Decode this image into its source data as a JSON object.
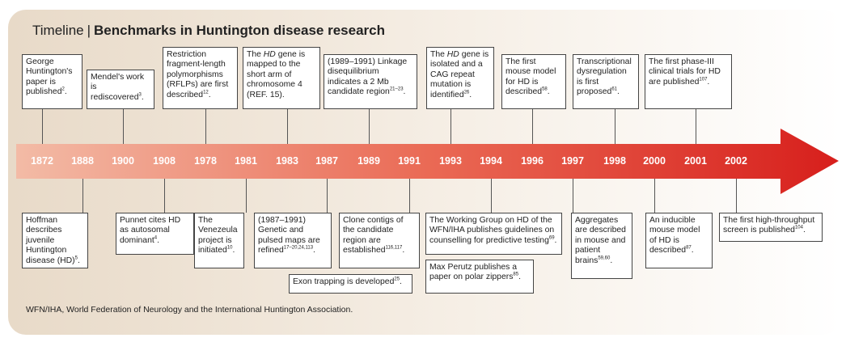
{
  "header": {
    "prefix": "Timeline",
    "separator": "|",
    "title": "Benchmarks in Huntington disease research"
  },
  "years": [
    "1872",
    "1888",
    "1900",
    "1908",
    "1978",
    "1981",
    "1983",
    "1987",
    "1989",
    "1991",
    "1993",
    "1994",
    "1996",
    "1997",
    "1998",
    "2000",
    "2001",
    "2002"
  ],
  "events_above": [
    {
      "year": "1872",
      "pre": "George Huntington's paper is published",
      "italic": "",
      "post": "",
      "sup": "2",
      "post2": "."
    },
    {
      "year": "1900",
      "pre": "Mendel's work is rediscovered",
      "italic": "",
      "post": "",
      "sup": "3",
      "post2": "."
    },
    {
      "year": "1978",
      "pre": "Restriction fragment-length polymorphisms (RFLPs) are first described",
      "italic": "",
      "post": "",
      "sup": "12",
      "post2": "."
    },
    {
      "year": "1983",
      "pre": "The ",
      "italic": "HD",
      "post": " gene is mapped to the short arm of chromosome 4 (REF. 15).",
      "sup": "",
      "post2": ""
    },
    {
      "year": "1989",
      "pre": "(1989–1991) Linkage disequilibrium indicates a 2 Mb candidate region",
      "italic": "",
      "post": "",
      "sup": "21–23",
      "post2": "."
    },
    {
      "year": "1993",
      "pre": "The ",
      "italic": "HD",
      "post": " gene is isolated and a CAG repeat mutation is identified",
      "sup": "26",
      "post2": "."
    },
    {
      "year": "1996",
      "pre": "The first mouse model for HD is described",
      "italic": "",
      "post": "",
      "sup": "58",
      "post2": "."
    },
    {
      "year": "1998",
      "pre": "Transcriptional dysregulation is first proposed",
      "italic": "",
      "post": "",
      "sup": "61",
      "post2": "."
    },
    {
      "year": "2001",
      "pre": "The first phase-III clinical trials for HD are published",
      "italic": "",
      "post": "",
      "sup": "107",
      "post2": "."
    }
  ],
  "events_below": [
    {
      "year": "1888",
      "pre": "Hoffman describes juvenile Huntington disease (HD)",
      "sup": "5",
      "post": "."
    },
    {
      "year": "1908",
      "pre": "Punnet cites HD as autosomal dominant",
      "sup": "4",
      "post": "."
    },
    {
      "year": "1981",
      "pre": "The Venezeula project is initiated",
      "sup": "10",
      "post": "."
    },
    {
      "year": "1987",
      "pre": "(1987–1991) Genetic and pulsed maps are refined",
      "sup": "17–20,24,113",
      "post": "."
    },
    {
      "year": "1987b",
      "pre": "Exon trapping is developed",
      "sup": "25",
      "post": "."
    },
    {
      "year": "1991",
      "pre": "Clone contigs of the candidate region are established",
      "sup": "116,117",
      "post": "."
    },
    {
      "year": "1994",
      "pre": "The Working Group on HD of the WFN/IHA publishes guidelines on counselling for predictive testing",
      "sup": "69",
      "post": "."
    },
    {
      "year": "1994b",
      "pre": "Max Perutz publishes a paper on polar zippers",
      "sup": "85",
      "post": "."
    },
    {
      "year": "1997",
      "pre": "Aggregates are described in mouse and patient brains",
      "sup": "59,60",
      "post": "."
    },
    {
      "year": "2000",
      "pre": "An inducible mouse model of HD is described",
      "sup": "87",
      "post": "."
    },
    {
      "year": "2002",
      "pre": "The first high-throughput screen is published",
      "sup": "104",
      "post": "."
    }
  ],
  "footnote": "WFN/IHA, World Federation of Neurology and the International Huntington Association.",
  "colors": {
    "arrow_start": "#f2b9a4",
    "arrow_end": "#d9241e",
    "background_left": "#e9dccb",
    "background_right": "#ffffff"
  }
}
